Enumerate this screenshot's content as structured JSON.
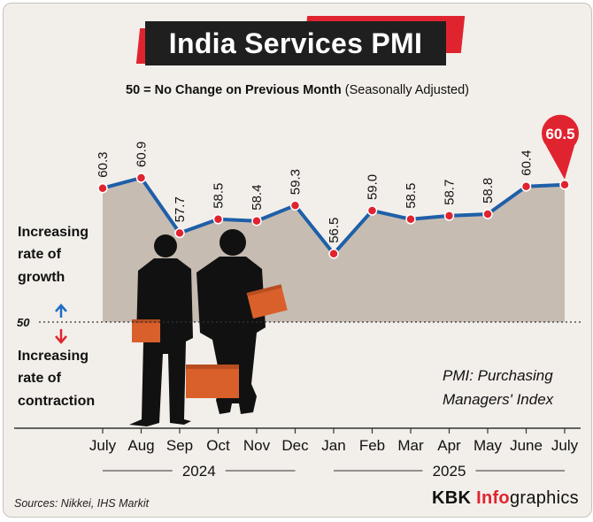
{
  "chart_data": {
    "type": "line",
    "title": "India Services PMI",
    "subtitle_bold": "50 = No Change on Previous Month",
    "subtitle_normal": "(Seasonally Adjusted)",
    "categories": [
      "July",
      "Aug",
      "Sep",
      "Oct",
      "Nov",
      "Dec",
      "Jan",
      "Feb",
      "Mar",
      "Apr",
      "May",
      "June",
      "July"
    ],
    "values": [
      60.3,
      60.9,
      57.7,
      58.5,
      58.4,
      59.3,
      56.5,
      59.0,
      58.5,
      58.7,
      58.8,
      60.4,
      60.5
    ],
    "value_labels": [
      "60.3",
      "60.9",
      "57.7",
      "58.5",
      "58.4",
      "59.3",
      "56.5",
      "59.0",
      "58.5",
      "58.7",
      "58.8",
      "60.4",
      "60.5"
    ],
    "reference_line": {
      "value": 50,
      "label": "50"
    },
    "years": [
      {
        "label": "2024"
      },
      {
        "label": "2025"
      }
    ],
    "growth_label": [
      "Increasing",
      "rate of",
      "growth"
    ],
    "contraction_label": [
      "Increasing",
      "rate of",
      "contraction"
    ],
    "note": [
      "PMI: Purchasing",
      "Managers' Index"
    ],
    "colors": {
      "line": "#1e5fa8",
      "marker": "#e0242f",
      "area": "#c7bcb2",
      "accent": "#e0242f"
    }
  },
  "footer": {
    "sources": "Sources: Nikkei, IHS Markit"
  },
  "brand": {
    "part1": "KBK ",
    "part2": "Info",
    "part3": "graphics"
  }
}
